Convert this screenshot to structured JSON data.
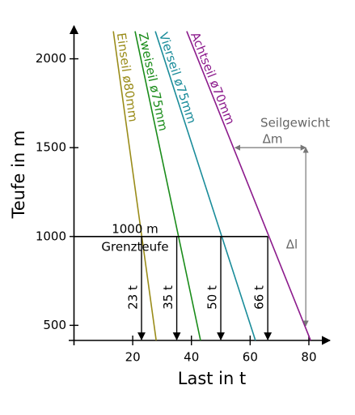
{
  "chart_data": {
    "type": "line",
    "xlabel": "Last in t",
    "ylabel": "Teufe in m",
    "xlim": [
      0,
      88
    ],
    "ylim": [
      415,
      2185
    ],
    "xticks": [
      20,
      40,
      60,
      80
    ],
    "yticks": [
      500,
      1000,
      1500,
      2000
    ],
    "series": [
      {
        "name": "Einseil ø80mm",
        "color": "#9a8c1a",
        "x": [
          13.4,
          28
        ],
        "y": [
          2155,
          415
        ]
      },
      {
        "name": "Zweiseil ø75mm",
        "color": "#1a8c1a",
        "x": [
          20.8,
          43.1
        ],
        "y": [
          2155,
          415
        ]
      },
      {
        "name": "Vierseil ø75mm",
        "color": "#1a8c9a",
        "x": [
          27.7,
          61.8
        ],
        "y": [
          2155,
          415
        ]
      },
      {
        "name": "Achtseil ø70mm",
        "color": "#8c1a8c",
        "x": [
          38.4,
          80.6
        ],
        "y": [
          2155,
          415
        ]
      }
    ],
    "limit_depth": {
      "value": 1000,
      "label": "1000 m"
    },
    "limit_name": "Grenzteufe",
    "limit_loads": [
      {
        "value": 23,
        "label": "23 t"
      },
      {
        "value": 35,
        "label": "35 t"
      },
      {
        "value": 50,
        "label": "50 t"
      },
      {
        "value": 66,
        "label": "66 t"
      }
    ],
    "weight_annotation": {
      "title": "Seilgewicht",
      "dm": "Δm",
      "dl": "Δl",
      "depth": 1500
    }
  }
}
